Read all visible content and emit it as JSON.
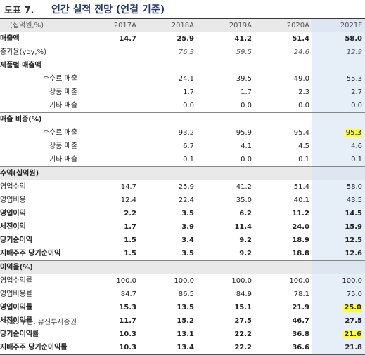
{
  "figure": {
    "label": "도표 7.",
    "title": "연간 실적 전망 (연결 기준)"
  },
  "header": {
    "unit": "(십억원,%)",
    "years": [
      "2017A",
      "2018A",
      "2019A",
      "2020A",
      "2021F"
    ]
  },
  "rows": [
    {
      "label": "매출액",
      "values": [
        "14.7",
        "25.9",
        "41.2",
        "51.4",
        "58.0"
      ],
      "style": "bold",
      "indent": false
    },
    {
      "label": "증가율(yoy,%)",
      "values": [
        "",
        "76.3",
        "59.5",
        "24.6",
        "12.9"
      ],
      "style": "ital",
      "indent": false
    },
    {
      "label": "제품별 매출액",
      "values": [
        "",
        "",
        "",
        "",
        ""
      ],
      "style": "bold",
      "indent": false
    },
    {
      "label": "수수료 매출",
      "values": [
        "24.1",
        "39.5",
        "49.0",
        "55.3"
      ],
      "style": "normal",
      "indent": true,
      "offset": 1
    },
    {
      "label": "상품 매출",
      "values": [
        "1.7",
        "1.7",
        "2.3",
        "2.7"
      ],
      "style": "normal",
      "indent": true,
      "offset": 1
    },
    {
      "label": "기타 매출",
      "values": [
        "0.0",
        "0.0",
        "0.0",
        "0.0"
      ],
      "style": "normal",
      "indent": true,
      "offset": 1
    },
    {
      "label": "매출 비중(%)",
      "values": [
        "",
        "",
        "",
        "",
        ""
      ],
      "style": "bold",
      "indent": false,
      "sep": true
    },
    {
      "label": "수수료 매출",
      "values": [
        "93.2",
        "95.9",
        "95.4",
        "95.3"
      ],
      "style": "normal",
      "indent": true,
      "offset": 1,
      "highlight": 3
    },
    {
      "label": "상품 매출",
      "values": [
        "6.7",
        "4.1",
        "4.5",
        "4.6"
      ],
      "style": "normal",
      "indent": true,
      "offset": 1
    },
    {
      "label": "기타 매출",
      "values": [
        "0.1",
        "0.0",
        "0.1",
        "0.1"
      ],
      "style": "normal",
      "indent": true,
      "offset": 1
    },
    {
      "label": "수익(십억원)",
      "values": [
        "",
        "",
        "",
        "",
        ""
      ],
      "style": "section"
    },
    {
      "label": "영업수익",
      "values": [
        "14.7",
        "25.9",
        "41.2",
        "51.4",
        "58.0"
      ],
      "style": "normal"
    },
    {
      "label": "영업비용",
      "values": [
        "12.4",
        "22.4",
        "35.0",
        "40.1",
        "43.5"
      ],
      "style": "normal"
    },
    {
      "label": "영업이익",
      "values": [
        "2.2",
        "3.5",
        "6.2",
        "11.2",
        "14.5"
      ],
      "style": "bold"
    },
    {
      "label": "세전이익",
      "values": [
        "1.7",
        "3.9",
        "11.4",
        "24.0",
        "15.9"
      ],
      "style": "bold"
    },
    {
      "label": "당기순이익",
      "values": [
        "1.5",
        "3.4",
        "9.2",
        "18.9",
        "12.5"
      ],
      "style": "bold"
    },
    {
      "label": "지배주주 당기순이익",
      "values": [
        "1.5",
        "3.5",
        "9.2",
        "18.8",
        "12.6"
      ],
      "style": "bold"
    },
    {
      "label": "이익율(%)",
      "values": [
        "",
        "",
        "",
        "",
        ""
      ],
      "style": "section"
    },
    {
      "label": "영업수익률",
      "values": [
        "100.0",
        "100.0",
        "100.0",
        "100.0",
        "100.0"
      ],
      "style": "normal"
    },
    {
      "label": "영업비용률",
      "values": [
        "84.7",
        "86.5",
        "84.9",
        "78.1",
        "75.0"
      ],
      "style": "normal"
    },
    {
      "label": "영업이익률",
      "values": [
        "15.3",
        "13.5",
        "15.1",
        "21.9",
        "25.0"
      ],
      "style": "bold",
      "highlight": 4
    },
    {
      "label": "세전이익률",
      "values": [
        "11.7",
        "15.2",
        "27.5",
        "46.7",
        "27.5"
      ],
      "style": "bold"
    },
    {
      "label": "당기순이익률",
      "values": [
        "10.3",
        "13.1",
        "22.2",
        "36.8",
        "21.6"
      ],
      "style": "bold",
      "highlight": 4
    },
    {
      "label": "지배주주 당기순이익률",
      "values": [
        "10.3",
        "13.4",
        "22.2",
        "36.6",
        "21.8"
      ],
      "style": "bold",
      "last": true
    }
  ],
  "source": "자료: 쿠콘, 유진투자증권",
  "colors": {
    "highlight": "#ffff33",
    "title": "#223a6b",
    "forecast_bg": "#e6eef8",
    "header_bg": "#e9e9e9"
  }
}
